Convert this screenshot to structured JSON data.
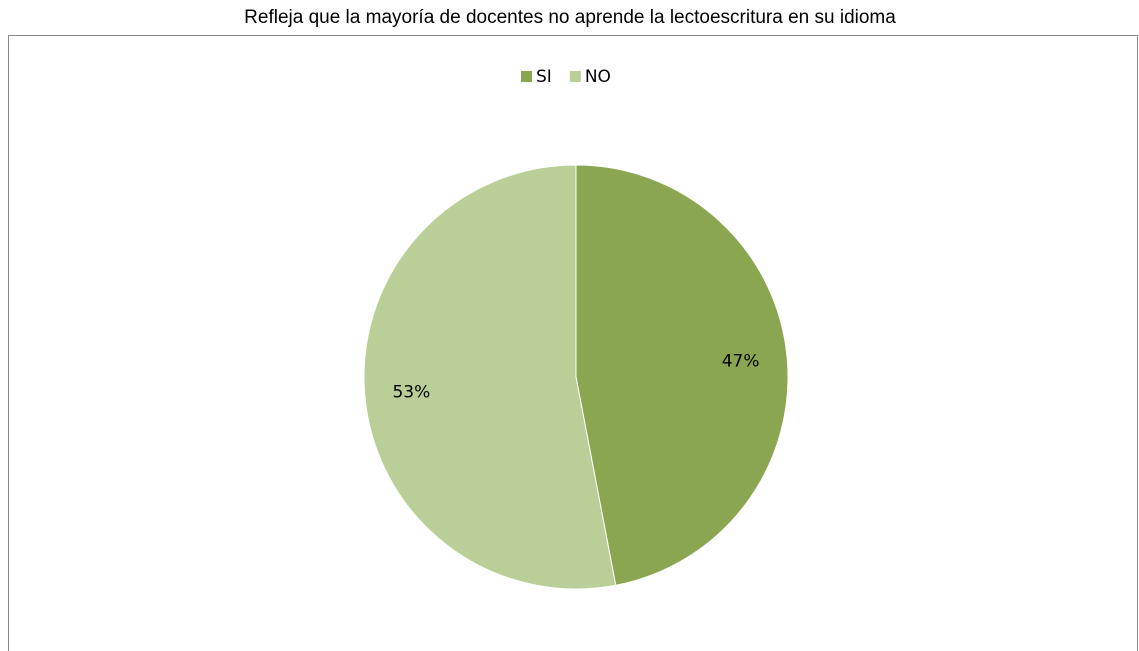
{
  "chart_data": {
    "type": "pie",
    "title": "Refleja que la mayoría de docentes no aprende la lectoescritura en su idioma",
    "categories": [
      "SI",
      "NO"
    ],
    "values": [
      47,
      53
    ],
    "value_labels": [
      "47%",
      "53%"
    ],
    "colors": [
      "#8aa650",
      "#bacf97"
    ],
    "legend": "top"
  }
}
